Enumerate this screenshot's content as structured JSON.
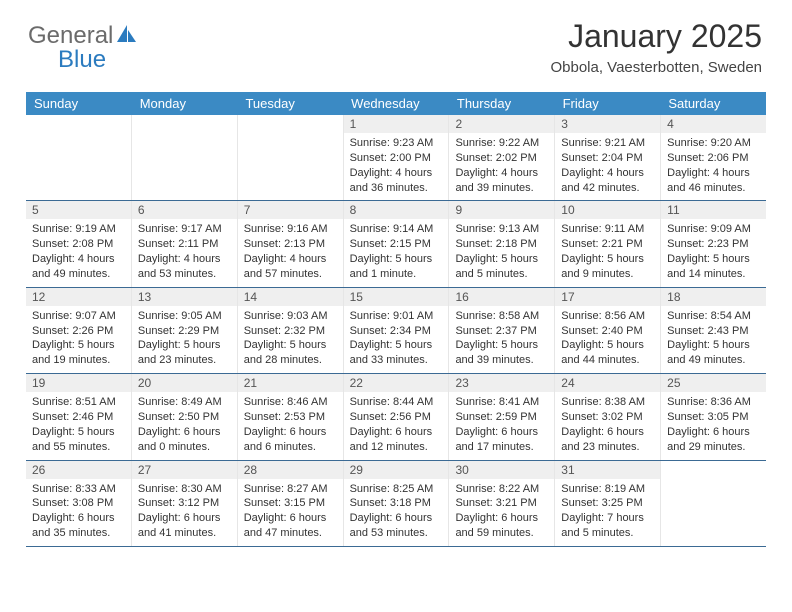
{
  "brand": {
    "part1": "General",
    "part2": "Blue"
  },
  "title": "January 2025",
  "location": "Obbola, Vaesterbotten, Sweden",
  "colors": {
    "header_bg": "#3b8ac4",
    "header_fg": "#ffffff",
    "rule": "#3b6a94",
    "daynum_bg": "#efefef",
    "logo_grey": "#6b6b6b",
    "logo_blue": "#2b7bbf"
  },
  "day_labels": [
    "Sunday",
    "Monday",
    "Tuesday",
    "Wednesday",
    "Thursday",
    "Friday",
    "Saturday"
  ],
  "weeks": [
    [
      {
        "n": "",
        "sr": "",
        "ss": "",
        "dl": ""
      },
      {
        "n": "",
        "sr": "",
        "ss": "",
        "dl": ""
      },
      {
        "n": "",
        "sr": "",
        "ss": "",
        "dl": ""
      },
      {
        "n": "1",
        "sr": "9:23 AM",
        "ss": "2:00 PM",
        "dl": "4 hours and 36 minutes."
      },
      {
        "n": "2",
        "sr": "9:22 AM",
        "ss": "2:02 PM",
        "dl": "4 hours and 39 minutes."
      },
      {
        "n": "3",
        "sr": "9:21 AM",
        "ss": "2:04 PM",
        "dl": "4 hours and 42 minutes."
      },
      {
        "n": "4",
        "sr": "9:20 AM",
        "ss": "2:06 PM",
        "dl": "4 hours and 46 minutes."
      }
    ],
    [
      {
        "n": "5",
        "sr": "9:19 AM",
        "ss": "2:08 PM",
        "dl": "4 hours and 49 minutes."
      },
      {
        "n": "6",
        "sr": "9:17 AM",
        "ss": "2:11 PM",
        "dl": "4 hours and 53 minutes."
      },
      {
        "n": "7",
        "sr": "9:16 AM",
        "ss": "2:13 PM",
        "dl": "4 hours and 57 minutes."
      },
      {
        "n": "8",
        "sr": "9:14 AM",
        "ss": "2:15 PM",
        "dl": "5 hours and 1 minute."
      },
      {
        "n": "9",
        "sr": "9:13 AM",
        "ss": "2:18 PM",
        "dl": "5 hours and 5 minutes."
      },
      {
        "n": "10",
        "sr": "9:11 AM",
        "ss": "2:21 PM",
        "dl": "5 hours and 9 minutes."
      },
      {
        "n": "11",
        "sr": "9:09 AM",
        "ss": "2:23 PM",
        "dl": "5 hours and 14 minutes."
      }
    ],
    [
      {
        "n": "12",
        "sr": "9:07 AM",
        "ss": "2:26 PM",
        "dl": "5 hours and 19 minutes."
      },
      {
        "n": "13",
        "sr": "9:05 AM",
        "ss": "2:29 PM",
        "dl": "5 hours and 23 minutes."
      },
      {
        "n": "14",
        "sr": "9:03 AM",
        "ss": "2:32 PM",
        "dl": "5 hours and 28 minutes."
      },
      {
        "n": "15",
        "sr": "9:01 AM",
        "ss": "2:34 PM",
        "dl": "5 hours and 33 minutes."
      },
      {
        "n": "16",
        "sr": "8:58 AM",
        "ss": "2:37 PM",
        "dl": "5 hours and 39 minutes."
      },
      {
        "n": "17",
        "sr": "8:56 AM",
        "ss": "2:40 PM",
        "dl": "5 hours and 44 minutes."
      },
      {
        "n": "18",
        "sr": "8:54 AM",
        "ss": "2:43 PM",
        "dl": "5 hours and 49 minutes."
      }
    ],
    [
      {
        "n": "19",
        "sr": "8:51 AM",
        "ss": "2:46 PM",
        "dl": "5 hours and 55 minutes."
      },
      {
        "n": "20",
        "sr": "8:49 AM",
        "ss": "2:50 PM",
        "dl": "6 hours and 0 minutes."
      },
      {
        "n": "21",
        "sr": "8:46 AM",
        "ss": "2:53 PM",
        "dl": "6 hours and 6 minutes."
      },
      {
        "n": "22",
        "sr": "8:44 AM",
        "ss": "2:56 PM",
        "dl": "6 hours and 12 minutes."
      },
      {
        "n": "23",
        "sr": "8:41 AM",
        "ss": "2:59 PM",
        "dl": "6 hours and 17 minutes."
      },
      {
        "n": "24",
        "sr": "8:38 AM",
        "ss": "3:02 PM",
        "dl": "6 hours and 23 minutes."
      },
      {
        "n": "25",
        "sr": "8:36 AM",
        "ss": "3:05 PM",
        "dl": "6 hours and 29 minutes."
      }
    ],
    [
      {
        "n": "26",
        "sr": "8:33 AM",
        "ss": "3:08 PM",
        "dl": "6 hours and 35 minutes."
      },
      {
        "n": "27",
        "sr": "8:30 AM",
        "ss": "3:12 PM",
        "dl": "6 hours and 41 minutes."
      },
      {
        "n": "28",
        "sr": "8:27 AM",
        "ss": "3:15 PM",
        "dl": "6 hours and 47 minutes."
      },
      {
        "n": "29",
        "sr": "8:25 AM",
        "ss": "3:18 PM",
        "dl": "6 hours and 53 minutes."
      },
      {
        "n": "30",
        "sr": "8:22 AM",
        "ss": "3:21 PM",
        "dl": "6 hours and 59 minutes."
      },
      {
        "n": "31",
        "sr": "8:19 AM",
        "ss": "3:25 PM",
        "dl": "7 hours and 5 minutes."
      },
      {
        "n": "",
        "sr": "",
        "ss": "",
        "dl": ""
      }
    ]
  ]
}
